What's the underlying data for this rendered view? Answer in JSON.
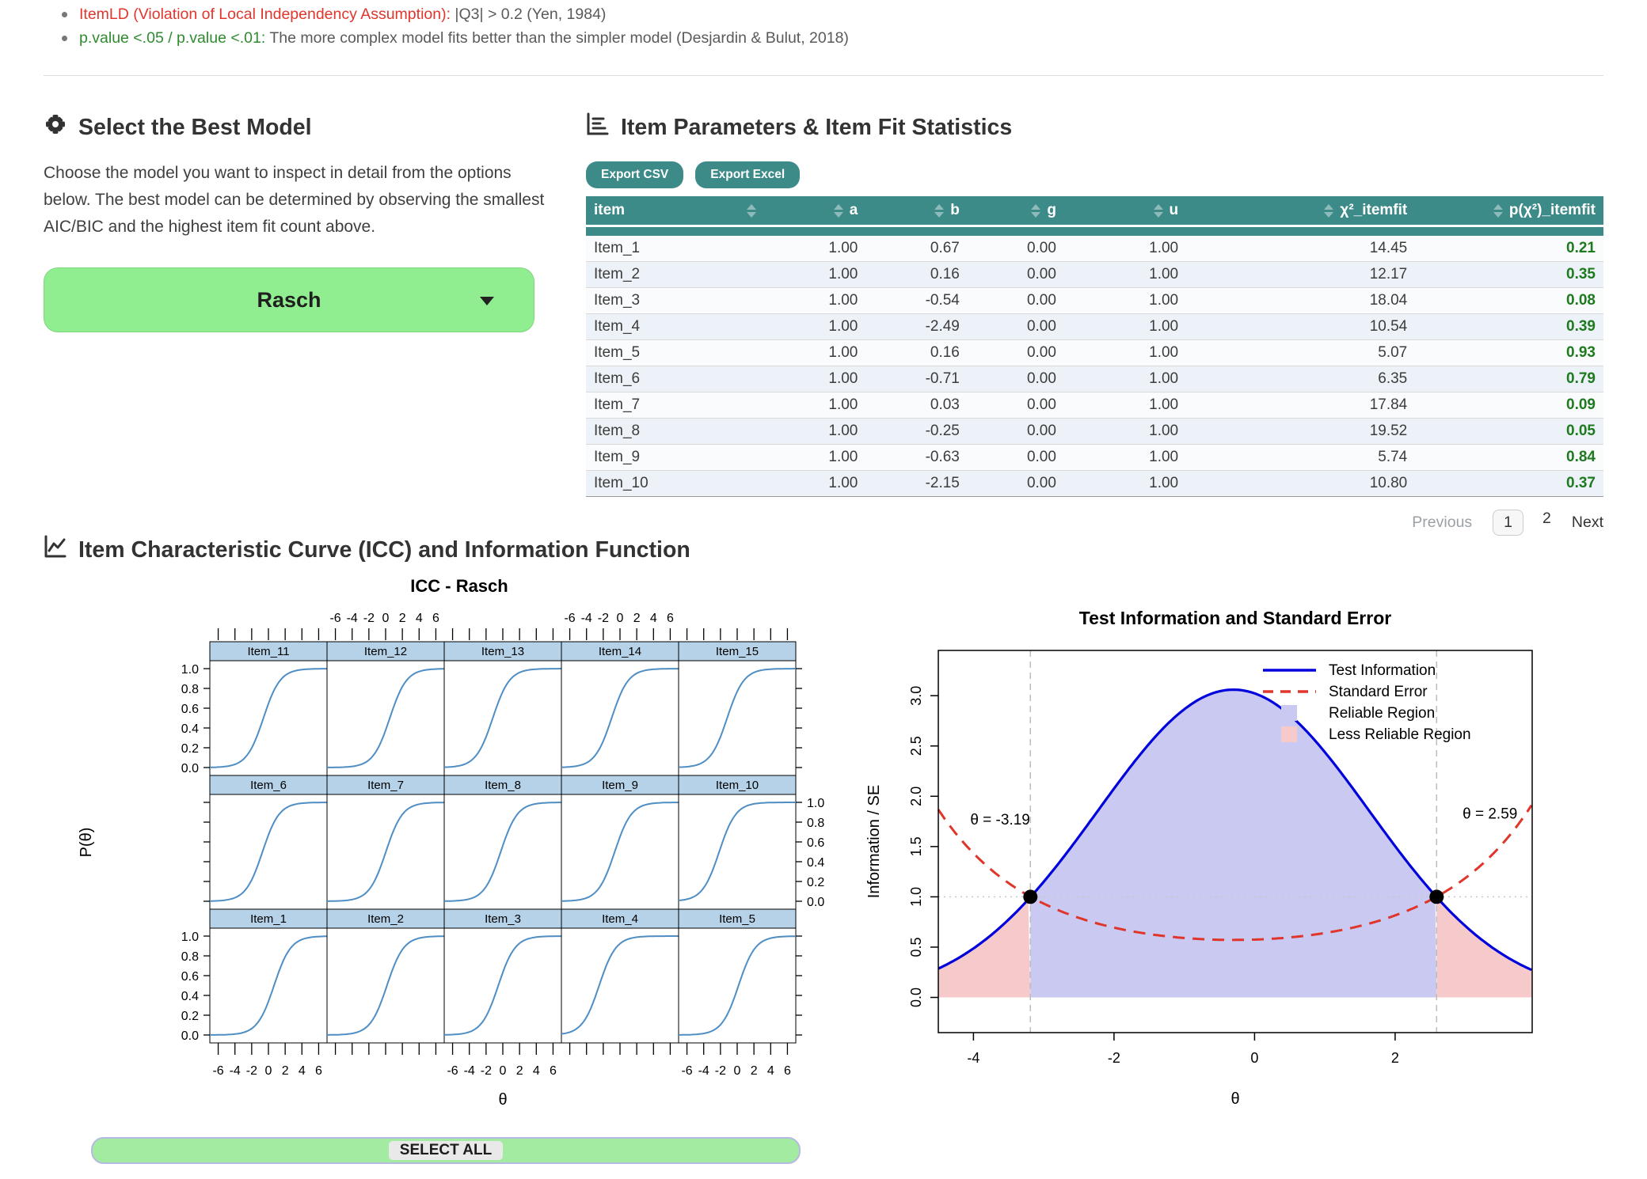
{
  "bullets": [
    {
      "lead": "ItemLD (Violation of Local Independency Assumption):",
      "rest": " |Q3| > 0.2 (Yen, 1984)"
    },
    {
      "lead": "p.value <.05 / p.value <.01:",
      "rest": " The more complex model fits better than the simpler model (Desjardin & Bulut, 2018)"
    }
  ],
  "left_panel": {
    "title": "Select the Best Model",
    "description": "Choose the model you want to inspect in detail from the options below. The best model can be determined by observing the smallest AIC/BIC and the highest item fit count above.",
    "model_selector": {
      "value": "Rasch"
    }
  },
  "right_panel": {
    "title": "Item Parameters & Item Fit Statistics",
    "export_csv_label": "Export CSV",
    "export_excel_label": "Export Excel",
    "table": {
      "columns": [
        "item",
        "a",
        "b",
        "g",
        "u",
        "χ²_itemfit",
        "p(χ²)_itemfit"
      ],
      "rows": [
        [
          "Item_1",
          "1.00",
          "0.67",
          "0.00",
          "1.00",
          "14.45",
          "0.21"
        ],
        [
          "Item_2",
          "1.00",
          "0.16",
          "0.00",
          "1.00",
          "12.17",
          "0.35"
        ],
        [
          "Item_3",
          "1.00",
          "-0.54",
          "0.00",
          "1.00",
          "18.04",
          "0.08"
        ],
        [
          "Item_4",
          "1.00",
          "-2.49",
          "0.00",
          "1.00",
          "10.54",
          "0.39"
        ],
        [
          "Item_5",
          "1.00",
          "0.16",
          "0.00",
          "1.00",
          "5.07",
          "0.93"
        ],
        [
          "Item_6",
          "1.00",
          "-0.71",
          "0.00",
          "1.00",
          "6.35",
          "0.79"
        ],
        [
          "Item_7",
          "1.00",
          "0.03",
          "0.00",
          "1.00",
          "17.84",
          "0.09"
        ],
        [
          "Item_8",
          "1.00",
          "-0.25",
          "0.00",
          "1.00",
          "19.52",
          "0.05"
        ],
        [
          "Item_9",
          "1.00",
          "-0.63",
          "0.00",
          "1.00",
          "5.74",
          "0.84"
        ],
        [
          "Item_10",
          "1.00",
          "-2.15",
          "0.00",
          "1.00",
          "10.80",
          "0.37"
        ]
      ]
    },
    "pagination": {
      "previous": "Previous",
      "pages": [
        "1",
        "2"
      ],
      "current": "1",
      "next": "Next"
    }
  },
  "icc_section_title": "Item Characteristic Curve (ICC) and Information Function",
  "select_all_label": "SELECT ALL",
  "colors": {
    "teal": "#3d8b89",
    "rasch_button_green": "#90ee90",
    "select_all_green": "#a3eba0",
    "select_all_border": "#b6b9e0",
    "strip_blue": "#b5d2e8",
    "icc_curve_blue": "#4f8ec4",
    "ti_blue": "#0000dd",
    "se_red": "#e0352b",
    "reliable_fill": "#c9c9f1",
    "less_reliable_fill": "#f6caca",
    "pvalue_green": "#1e7a1e",
    "bullet_red": "#e0362c",
    "bullet_green": "#2e8b2e"
  },
  "chart_data": [
    {
      "type": "line",
      "title": "ICC - Rasch",
      "xlabel": "θ",
      "ylabel": "P(θ)",
      "x_range": [
        -7,
        7
      ],
      "y_range": [
        0,
        1
      ],
      "x_ticks": [
        -6,
        -4,
        -2,
        0,
        2,
        4,
        6
      ],
      "y_ticks": [
        0.0,
        0.2,
        0.4,
        0.6,
        0.8,
        1.0
      ],
      "model": "Rasch: P(θ) = 1 / (1 + exp(-(θ - b)))",
      "panel_rows": [
        [
          "Item_11",
          "Item_12",
          "Item_13",
          "Item_14",
          "Item_15"
        ],
        [
          "Item_6",
          "Item_7",
          "Item_8",
          "Item_9",
          "Item_10"
        ],
        [
          "Item_1",
          "Item_2",
          "Item_3",
          "Item_4",
          "Item_5"
        ]
      ],
      "b_values": {
        "Item_1": 0.67,
        "Item_2": 0.16,
        "Item_3": -0.54,
        "Item_4": -2.49,
        "Item_5": 0.16,
        "Item_6": -0.71,
        "Item_7": 0.03,
        "Item_8": -0.25,
        "Item_9": -0.63,
        "Item_10": -2.15,
        "Item_11": -0.6,
        "Item_12": 0.5,
        "Item_13": -1.2,
        "Item_14": -1.0,
        "Item_15": -1.2
      }
    },
    {
      "type": "area",
      "title": "Test Information and Standard Error",
      "xlabel": "θ",
      "ylabel": "Information / SE",
      "x_range": [
        -4.5,
        3.95
      ],
      "y_range": [
        -0.35,
        3.45
      ],
      "x_ticks": [
        -4,
        -2,
        0,
        2
      ],
      "y_ticks": [
        0.0,
        0.5,
        1.0,
        1.5,
        2.0,
        2.5,
        3.0
      ],
      "theta_low": -3.19,
      "theta_high": 2.59,
      "reference_line_y": 1.0,
      "info_curve": {
        "peak": 3.06,
        "center": -0.3,
        "sigma": 1.93
      },
      "samples": {
        "theta": [
          -4.5,
          -4.0,
          -3.5,
          -3.19,
          -3.0,
          -2.5,
          -2.0,
          -1.5,
          -1.0,
          -0.5,
          -0.3,
          0.0,
          0.5,
          1.0,
          1.5,
          2.0,
          2.59,
          3.0,
          3.5,
          3.95
        ],
        "information": [
          0.29,
          0.49,
          0.77,
          1.0,
          1.15,
          1.6,
          2.08,
          2.52,
          2.87,
          3.04,
          3.06,
          3.02,
          2.81,
          2.44,
          1.98,
          1.5,
          1.0,
          0.71,
          0.44,
          0.29
        ],
        "standard_error": [
          1.87,
          1.43,
          1.14,
          1.0,
          0.93,
          0.79,
          0.69,
          0.63,
          0.59,
          0.57,
          0.57,
          0.58,
          0.6,
          0.64,
          0.71,
          0.82,
          1.0,
          1.19,
          1.51,
          1.87
        ]
      },
      "annotations": [
        {
          "text": "θ = -3.19",
          "x": -3.62,
          "y": 1.72
        },
        {
          "text": "θ = 2.59",
          "x": 3.35,
          "y": 1.78
        }
      ],
      "legend": [
        {
          "label": "Test Information",
          "type": "line",
          "color": "#0000dd",
          "dash": "solid"
        },
        {
          "label": "Standard Error",
          "type": "line",
          "color": "#e0352b",
          "dash": "dashed"
        },
        {
          "label": "Reliable Region",
          "type": "fill",
          "color": "#c9c9f1"
        },
        {
          "label": "Less Reliable Region",
          "type": "fill",
          "color": "#f6caca"
        }
      ]
    }
  ]
}
